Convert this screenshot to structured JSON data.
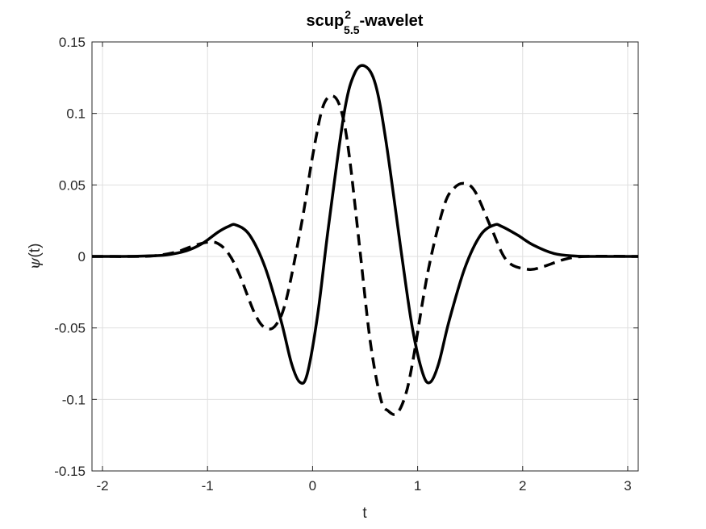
{
  "chart_data": {
    "type": "line",
    "title": "scup",
    "title_superscript": "2",
    "title_subscript": "5.5",
    "title_suffix": "-wavelet",
    "xlabel": "t",
    "ylabel_symbol": "ψ",
    "ylabel_suffix": "(t)",
    "xlim": [
      -2.1,
      3.1
    ],
    "ylim": [
      -0.15,
      0.15
    ],
    "xticks": [
      -2,
      -1,
      0,
      1,
      2,
      3
    ],
    "xtick_labels": [
      "-2",
      "-1",
      "0",
      "1",
      "2",
      "3"
    ],
    "yticks": [
      -0.15,
      -0.1,
      -0.05,
      0,
      0.05,
      0.1,
      0.15
    ],
    "ytick_labels": [
      "-0.15",
      "-0.1",
      "-0.05",
      "0",
      "0.05",
      "0.1",
      "0.15"
    ],
    "grid": true,
    "colors": {
      "line": "#000000",
      "grid": "#dfdfdf",
      "axes": "#262626"
    },
    "series": [
      {
        "style": "solid",
        "x": [
          -2.1,
          -1.8,
          -1.6,
          -1.4,
          -1.2,
          -1.05,
          -0.9,
          -0.8,
          -0.73,
          -0.6,
          -0.45,
          -0.3,
          -0.2,
          -0.12,
          -0.05,
          0.05,
          0.15,
          0.3,
          0.4,
          0.5,
          0.6,
          0.7,
          0.85,
          0.95,
          1.05,
          1.12,
          1.2,
          1.3,
          1.45,
          1.6,
          1.73,
          1.8,
          1.95,
          2.1,
          2.3,
          2.5,
          2.7,
          3.1
        ],
        "y": [
          0,
          0,
          0.0003,
          0.001,
          0.004,
          0.009,
          0.017,
          0.021,
          0.022,
          0.015,
          -0.008,
          -0.045,
          -0.075,
          -0.088,
          -0.082,
          -0.04,
          0.02,
          0.1,
          0.128,
          0.133,
          0.12,
          0.08,
          0.0,
          -0.05,
          -0.082,
          -0.088,
          -0.075,
          -0.045,
          -0.008,
          0.015,
          0.022,
          0.021,
          0.015,
          0.008,
          0.002,
          0.0003,
          0,
          0
        ]
      },
      {
        "style": "dashed",
        "x": [
          -2.1,
          -1.7,
          -1.5,
          -1.3,
          -1.15,
          -1.0,
          -0.9,
          -0.8,
          -0.7,
          -0.55,
          -0.45,
          -0.35,
          -0.25,
          -0.1,
          0.0,
          0.1,
          0.2,
          0.28,
          0.35,
          0.45,
          0.55,
          0.65,
          0.72,
          0.8,
          0.88,
          0.95,
          1.1,
          1.25,
          1.35,
          1.45,
          1.55,
          1.7,
          1.85,
          2.05,
          2.2,
          2.4,
          2.6,
          3.1
        ],
        "y": [
          0,
          0,
          0.0005,
          0.003,
          0.007,
          0.01,
          0.009,
          0.002,
          -0.012,
          -0.04,
          -0.05,
          -0.048,
          -0.03,
          0.025,
          0.07,
          0.105,
          0.112,
          0.1,
          0.07,
          0.005,
          -0.06,
          -0.1,
          -0.108,
          -0.11,
          -0.098,
          -0.075,
          -0.01,
          0.035,
          0.048,
          0.051,
          0.045,
          0.02,
          -0.003,
          -0.009,
          -0.007,
          -0.002,
          0,
          0
        ]
      }
    ]
  }
}
